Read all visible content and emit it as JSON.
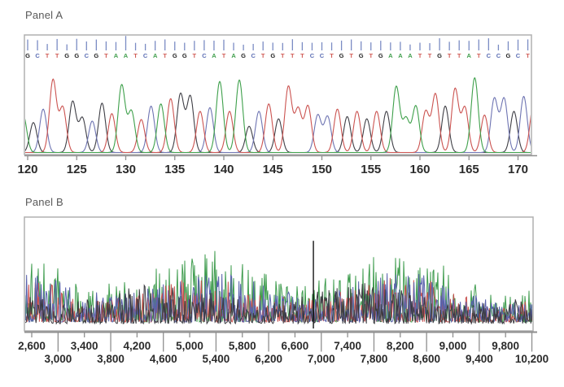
{
  "figure": {
    "background": "#ffffff",
    "frame_color": "#b0b0b0",
    "ruler_color": "#8f8f8f",
    "tick_label_color": "#2b2b2b",
    "panel_label_color": "#595959"
  },
  "chart_data": [
    {
      "type": "line",
      "subtype": "sanger_sequencing_chromatogram",
      "title": "Panel A",
      "sequence": "GCTTGGCGTAATCATGGTCATAGCTGTTTCCTGTGTGAAATTGTTATCCGCT",
      "base_start_position": 120,
      "xlim": [
        120,
        171
      ],
      "x_ticks": [
        120,
        125,
        130,
        135,
        140,
        145,
        150,
        155,
        160,
        165,
        170
      ],
      "peak_heights": [
        0.4,
        0.58,
        0.97,
        0.6,
        0.68,
        0.46,
        0.42,
        0.66,
        0.52,
        0.9,
        0.55,
        0.44,
        0.62,
        0.65,
        0.72,
        0.78,
        0.75,
        0.55,
        0.6,
        0.95,
        0.55,
        0.97,
        0.35,
        0.55,
        0.65,
        0.45,
        0.88,
        0.58,
        0.62,
        0.5,
        0.48,
        0.58,
        0.48,
        0.55,
        0.45,
        0.55,
        0.55,
        0.88,
        0.45,
        0.62,
        0.55,
        0.78,
        0.62,
        0.85,
        0.6,
        1.0,
        0.5,
        0.72,
        0.72,
        0.55,
        0.75,
        0.65
      ],
      "edge_peak": {
        "base": "A",
        "height": 0.5
      },
      "trace_colors": {
        "A": "#3ea04b",
        "C": "#6e74b2",
        "G": "#3f3f46",
        "T": "#cb5350"
      },
      "letter_colors": {
        "A": "#3f9e4b",
        "C": "#5c6eb4",
        "G": "#1f1f1f",
        "T": "#d05b55"
      },
      "quality_bar_color": "#7b8cc4",
      "grid": "off",
      "legend": "none"
    },
    {
      "type": "line",
      "subtype": "sanger_chromatogram_full_run_overview",
      "title": "Panel B",
      "xlim": [
        2600,
        10200
      ],
      "tick_step": 400,
      "x_ticks_row1": [
        "2,600",
        "3,400",
        "4,200",
        "5,000",
        "5,800",
        "6,600",
        "7,400",
        "8,200",
        "9,000",
        "9,800"
      ],
      "x_ticks_row2": [
        "3,000",
        "3,800",
        "4,600",
        "5,400",
        "6,200",
        "7,000",
        "7,800",
        "8,600",
        "9,400",
        "10,200"
      ],
      "noise_seed": 1337,
      "channels": [
        {
          "base": "A",
          "color": "#2f9440",
          "amp": 88,
          "floor": 8,
          "spike_chance": 0.06,
          "x_offset": 0.0
        },
        {
          "base": "T",
          "color": "#c4423f",
          "amp": 56,
          "floor": 8,
          "spike_chance": 0.04,
          "x_offset": 0.35
        },
        {
          "base": "C",
          "color": "#4c55a6",
          "amp": 62,
          "floor": 8,
          "spike_chance": 0.05,
          "x_offset": 0.65
        },
        {
          "base": "G",
          "color": "#2b2b31",
          "amp": 50,
          "floor": 6,
          "spike_chance": 0.03,
          "x_offset": 0.2
        }
      ],
      "tall_spike": {
        "x": 6880,
        "color": "#141414",
        "relative_height": 0.77
      },
      "grid": "off",
      "legend": "none"
    }
  ]
}
